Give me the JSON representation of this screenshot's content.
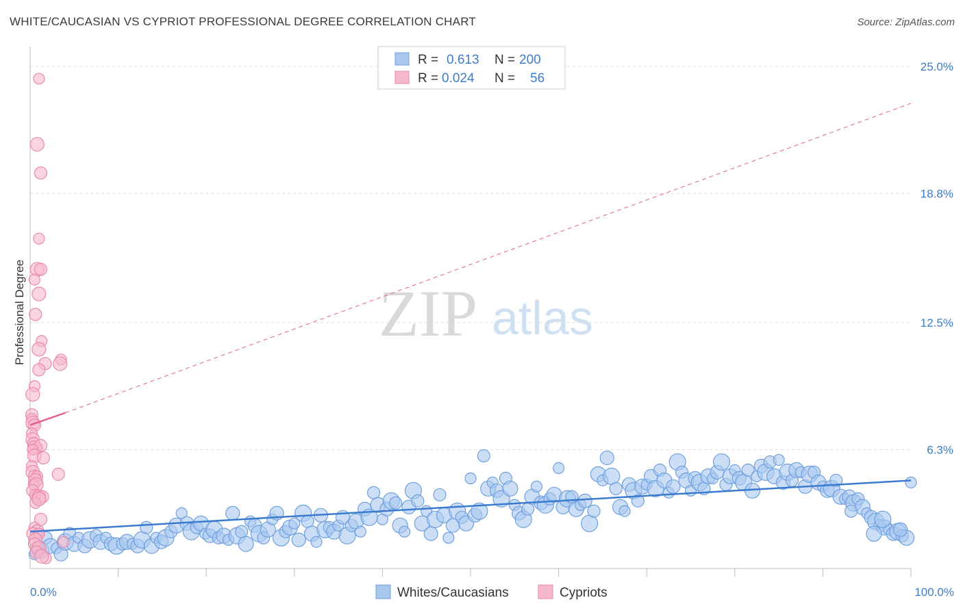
{
  "header": {
    "title": "WHITE/CAUCASIAN VS CYPRIOT PROFESSIONAL DEGREE CORRELATION CHART",
    "source": "Source: ZipAtlas.com"
  },
  "watermark": {
    "zip": "ZIP",
    "atlas": "atlas"
  },
  "legend_top": {
    "rows": [
      {
        "r_label": "R =",
        "r_value": "0.613",
        "n_label": "N =",
        "n_value": "200"
      },
      {
        "r_label": "R =",
        "r_value": "0.024",
        "n_label": "N =",
        "n_value": "56"
      }
    ]
  },
  "colors": {
    "blue_fill": "#a8c8f0",
    "blue_stroke": "#6fa0dd",
    "blue_line": "#3a7bd0",
    "pink_fill": "#f6b8cb",
    "pink_stroke": "#e88aa8",
    "pink_line": "#e0608a",
    "grid": "#dddddd",
    "axis": "#bbbbbb"
  },
  "chart_data": {
    "type": "scatter",
    "title": "WHITE/CAUCASIAN VS CYPRIOT PROFESSIONAL DEGREE CORRELATION CHART",
    "xlabel": "",
    "ylabel": "Professional Degree",
    "xlim": [
      0,
      100
    ],
    "ylim": [
      0.5,
      25.0
    ],
    "x_tick_labels": [
      "0.0%",
      "100.0%"
    ],
    "y_ticks": [
      6.3,
      12.5,
      18.8,
      25.0
    ],
    "y_tick_labels": [
      "6.3%",
      "12.5%",
      "18.8%",
      "25.0%"
    ],
    "grid": true,
    "legend": [
      "Whites/Caucasians",
      "Cypriots"
    ],
    "series": [
      {
        "name": "Whites/Caucasians",
        "r": 0.613,
        "n": 200,
        "trend": {
          "x": [
            0,
            100
          ],
          "y": [
            2.3,
            4.8
          ]
        },
        "points": [
          [
            0.5,
            1.2
          ],
          [
            0.8,
            1.5
          ],
          [
            1.2,
            1.4
          ],
          [
            1.8,
            2.0
          ],
          [
            2.3,
            1.6
          ],
          [
            3.0,
            1.5
          ],
          [
            3.5,
            1.2
          ],
          [
            4.0,
            1.8
          ],
          [
            4.5,
            2.2
          ],
          [
            5.0,
            1.7
          ],
          [
            5.5,
            2.0
          ],
          [
            6.2,
            1.6
          ],
          [
            6.8,
            1.9
          ],
          [
            7.5,
            2.1
          ],
          [
            8.0,
            1.8
          ],
          [
            8.6,
            2.0
          ],
          [
            9.2,
            1.7
          ],
          [
            9.8,
            1.6
          ],
          [
            10.5,
            1.7
          ],
          [
            11.0,
            1.8
          ],
          [
            11.6,
            1.7
          ],
          [
            12.2,
            1.6
          ],
          [
            12.7,
            1.9
          ],
          [
            13.2,
            2.5
          ],
          [
            13.8,
            1.6
          ],
          [
            14.3,
            2.0
          ],
          [
            14.9,
            1.8
          ],
          [
            15.4,
            2.0
          ],
          [
            16.0,
            2.3
          ],
          [
            16.6,
            2.6
          ],
          [
            17.2,
            3.2
          ],
          [
            17.8,
            2.7
          ],
          [
            18.3,
            2.3
          ],
          [
            18.9,
            2.5
          ],
          [
            19.4,
            2.7
          ],
          [
            19.9,
            2.2
          ],
          [
            20.4,
            2.1
          ],
          [
            20.9,
            2.4
          ],
          [
            21.4,
            2.0
          ],
          [
            22.0,
            2.1
          ],
          [
            22.5,
            1.9
          ],
          [
            23.0,
            3.2
          ],
          [
            23.5,
            2.1
          ],
          [
            24.0,
            2.3
          ],
          [
            24.5,
            1.7
          ],
          [
            25.0,
            2.8
          ],
          [
            25.5,
            2.6
          ],
          [
            26.0,
            2.2
          ],
          [
            26.5,
            2.0
          ],
          [
            27.0,
            2.4
          ],
          [
            27.5,
            2.9
          ],
          [
            28.0,
            3.2
          ],
          [
            28.5,
            2.0
          ],
          [
            29.0,
            2.3
          ],
          [
            29.5,
            2.5
          ],
          [
            30.0,
            2.7
          ],
          [
            30.5,
            1.9
          ],
          [
            31.0,
            3.2
          ],
          [
            31.5,
            2.8
          ],
          [
            32.0,
            2.2
          ],
          [
            32.5,
            1.8
          ],
          [
            33.0,
            3.1
          ],
          [
            33.5,
            2.4
          ],
          [
            34.0,
            2.5
          ],
          [
            34.5,
            2.3
          ],
          [
            35.0,
            2.6
          ],
          [
            35.5,
            3.0
          ],
          [
            36.0,
            2.1
          ],
          [
            36.5,
            2.6
          ],
          [
            37.0,
            2.8
          ],
          [
            37.5,
            2.3
          ],
          [
            38.0,
            3.4
          ],
          [
            38.5,
            3.0
          ],
          [
            39.0,
            4.2
          ],
          [
            39.5,
            3.6
          ],
          [
            40.0,
            2.9
          ],
          [
            40.5,
            3.4
          ],
          [
            41.0,
            3.8
          ],
          [
            41.5,
            3.7
          ],
          [
            42.0,
            2.6
          ],
          [
            42.5,
            2.3
          ],
          [
            43.0,
            3.5
          ],
          [
            43.5,
            4.3
          ],
          [
            44.0,
            3.8
          ],
          [
            44.5,
            2.7
          ],
          [
            45.0,
            3.3
          ],
          [
            45.5,
            2.2
          ],
          [
            46.0,
            2.9
          ],
          [
            46.5,
            4.1
          ],
          [
            47.0,
            3.1
          ],
          [
            47.5,
            2.0
          ],
          [
            48.0,
            2.6
          ],
          [
            48.5,
            3.3
          ],
          [
            49.0,
            3.0
          ],
          [
            49.5,
            2.7
          ],
          [
            50.0,
            4.9
          ],
          [
            50.5,
            3.1
          ],
          [
            51.0,
            3.3
          ],
          [
            51.5,
            6.0
          ],
          [
            52.0,
            4.4
          ],
          [
            52.5,
            4.7
          ],
          [
            53.0,
            4.3
          ],
          [
            53.5,
            3.9
          ],
          [
            54.0,
            4.9
          ],
          [
            54.5,
            4.4
          ],
          [
            55.0,
            3.6
          ],
          [
            55.5,
            3.2
          ],
          [
            56.0,
            2.9
          ],
          [
            56.5,
            3.4
          ],
          [
            57.0,
            4.0
          ],
          [
            57.5,
            4.5
          ],
          [
            58.0,
            3.7
          ],
          [
            58.5,
            3.6
          ],
          [
            59.0,
            3.9
          ],
          [
            59.5,
            4.1
          ],
          [
            60.0,
            5.4
          ],
          [
            60.5,
            3.5
          ],
          [
            61.0,
            3.9
          ],
          [
            61.5,
            4.0
          ],
          [
            62.0,
            3.4
          ],
          [
            62.5,
            3.6
          ],
          [
            63.0,
            3.8
          ],
          [
            63.5,
            2.7
          ],
          [
            64.0,
            3.3
          ],
          [
            64.5,
            5.1
          ],
          [
            65.0,
            4.8
          ],
          [
            65.5,
            5.9
          ],
          [
            66.0,
            5.0
          ],
          [
            66.5,
            4.4
          ],
          [
            67.0,
            3.5
          ],
          [
            67.5,
            3.3
          ],
          [
            68.0,
            4.6
          ],
          [
            68.5,
            4.3
          ],
          [
            69.0,
            3.8
          ],
          [
            69.5,
            4.5
          ],
          [
            70.0,
            4.6
          ],
          [
            70.5,
            5.0
          ],
          [
            71.0,
            4.4
          ],
          [
            71.5,
            5.3
          ],
          [
            72.0,
            4.8
          ],
          [
            72.5,
            4.2
          ],
          [
            73.0,
            4.5
          ],
          [
            73.5,
            5.7
          ],
          [
            74.0,
            5.2
          ],
          [
            74.5,
            4.8
          ],
          [
            75.0,
            4.3
          ],
          [
            75.5,
            4.9
          ],
          [
            76.0,
            4.7
          ],
          [
            76.5,
            4.4
          ],
          [
            77.0,
            5.0
          ],
          [
            77.5,
            4.9
          ],
          [
            78.0,
            5.2
          ],
          [
            78.5,
            5.7
          ],
          [
            79.0,
            4.6
          ],
          [
            79.5,
            5.0
          ],
          [
            80.0,
            5.3
          ],
          [
            80.5,
            4.9
          ],
          [
            81.0,
            4.7
          ],
          [
            81.5,
            5.3
          ],
          [
            82.0,
            4.3
          ],
          [
            82.5,
            5.0
          ],
          [
            83.0,
            5.5
          ],
          [
            83.5,
            5.2
          ],
          [
            84.0,
            5.7
          ],
          [
            84.5,
            5.0
          ],
          [
            85.0,
            5.8
          ],
          [
            85.5,
            4.7
          ],
          [
            86.0,
            5.2
          ],
          [
            86.5,
            4.8
          ],
          [
            87.0,
            5.3
          ],
          [
            87.5,
            5.2
          ],
          [
            88.0,
            4.5
          ],
          [
            88.5,
            5.1
          ],
          [
            89.0,
            5.2
          ],
          [
            89.5,
            4.7
          ],
          [
            90.0,
            4.5
          ],
          [
            90.5,
            4.3
          ],
          [
            91.0,
            4.4
          ],
          [
            91.5,
            4.8
          ],
          [
            92.0,
            4.0
          ],
          [
            92.5,
            3.9
          ],
          [
            93.0,
            4.0
          ],
          [
            93.5,
            3.7
          ],
          [
            94.0,
            3.9
          ],
          [
            94.5,
            3.5
          ],
          [
            95.0,
            3.2
          ],
          [
            95.5,
            3.0
          ],
          [
            96.0,
            2.8
          ],
          [
            96.5,
            2.6
          ],
          [
            97.0,
            2.5
          ],
          [
            97.5,
            2.4
          ],
          [
            98.0,
            2.2
          ],
          [
            98.5,
            2.3
          ],
          [
            99.0,
            2.1
          ],
          [
            99.5,
            2.0
          ],
          [
            100.0,
            4.7
          ],
          [
            98.8,
            2.4
          ],
          [
            96.8,
            2.9
          ],
          [
            93.2,
            3.3
          ],
          [
            95.8,
            2.2
          ]
        ]
      },
      {
        "name": "Cypriots",
        "r": 0.024,
        "n": 56,
        "trend": {
          "x": [
            0,
            4
          ],
          "y": [
            7.5,
            8.1
          ]
        },
        "trend_extension": {
          "x": [
            4,
            100
          ],
          "y": [
            8.1,
            23.2
          ]
        },
        "points": [
          [
            1.0,
            24.4
          ],
          [
            0.8,
            21.2
          ],
          [
            1.2,
            19.8
          ],
          [
            1.0,
            16.6
          ],
          [
            0.8,
            15.1
          ],
          [
            1.2,
            15.1
          ],
          [
            0.5,
            14.6
          ],
          [
            1.0,
            13.9
          ],
          [
            0.6,
            12.9
          ],
          [
            1.3,
            11.6
          ],
          [
            1.0,
            11.2
          ],
          [
            1.7,
            10.5
          ],
          [
            3.5,
            10.7
          ],
          [
            3.4,
            10.5
          ],
          [
            1.0,
            10.2
          ],
          [
            0.5,
            9.4
          ],
          [
            0.3,
            9.0
          ],
          [
            0.2,
            8.0
          ],
          [
            0.2,
            7.8
          ],
          [
            0.3,
            7.6
          ],
          [
            0.5,
            7.5
          ],
          [
            0.2,
            7.1
          ],
          [
            0.3,
            6.8
          ],
          [
            0.4,
            6.6
          ],
          [
            0.8,
            6.4
          ],
          [
            0.5,
            6.4
          ],
          [
            1.2,
            6.5
          ],
          [
            0.3,
            6.3
          ],
          [
            0.5,
            6.0
          ],
          [
            1.5,
            5.9
          ],
          [
            0.2,
            5.5
          ],
          [
            0.3,
            5.2
          ],
          [
            0.5,
            5.0
          ],
          [
            0.8,
            5.0
          ],
          [
            0.6,
            4.8
          ],
          [
            3.2,
            5.1
          ],
          [
            0.4,
            4.6
          ],
          [
            0.7,
            4.6
          ],
          [
            0.3,
            4.3
          ],
          [
            0.6,
            4.1
          ],
          [
            1.0,
            4.0
          ],
          [
            1.4,
            4.0
          ],
          [
            0.6,
            3.7
          ],
          [
            1.0,
            3.9
          ],
          [
            1.2,
            2.9
          ],
          [
            0.5,
            2.5
          ],
          [
            0.8,
            2.3
          ],
          [
            0.3,
            2.2
          ],
          [
            1.0,
            2.2
          ],
          [
            0.6,
            1.9
          ],
          [
            0.5,
            1.7
          ],
          [
            3.8,
            1.8
          ],
          [
            1.0,
            1.5
          ],
          [
            0.7,
            1.3
          ],
          [
            1.8,
            1.0
          ],
          [
            1.3,
            1.1
          ]
        ]
      }
    ]
  },
  "legend_bottom": {
    "items": [
      "Whites/Caucasians",
      "Cypriots"
    ]
  }
}
